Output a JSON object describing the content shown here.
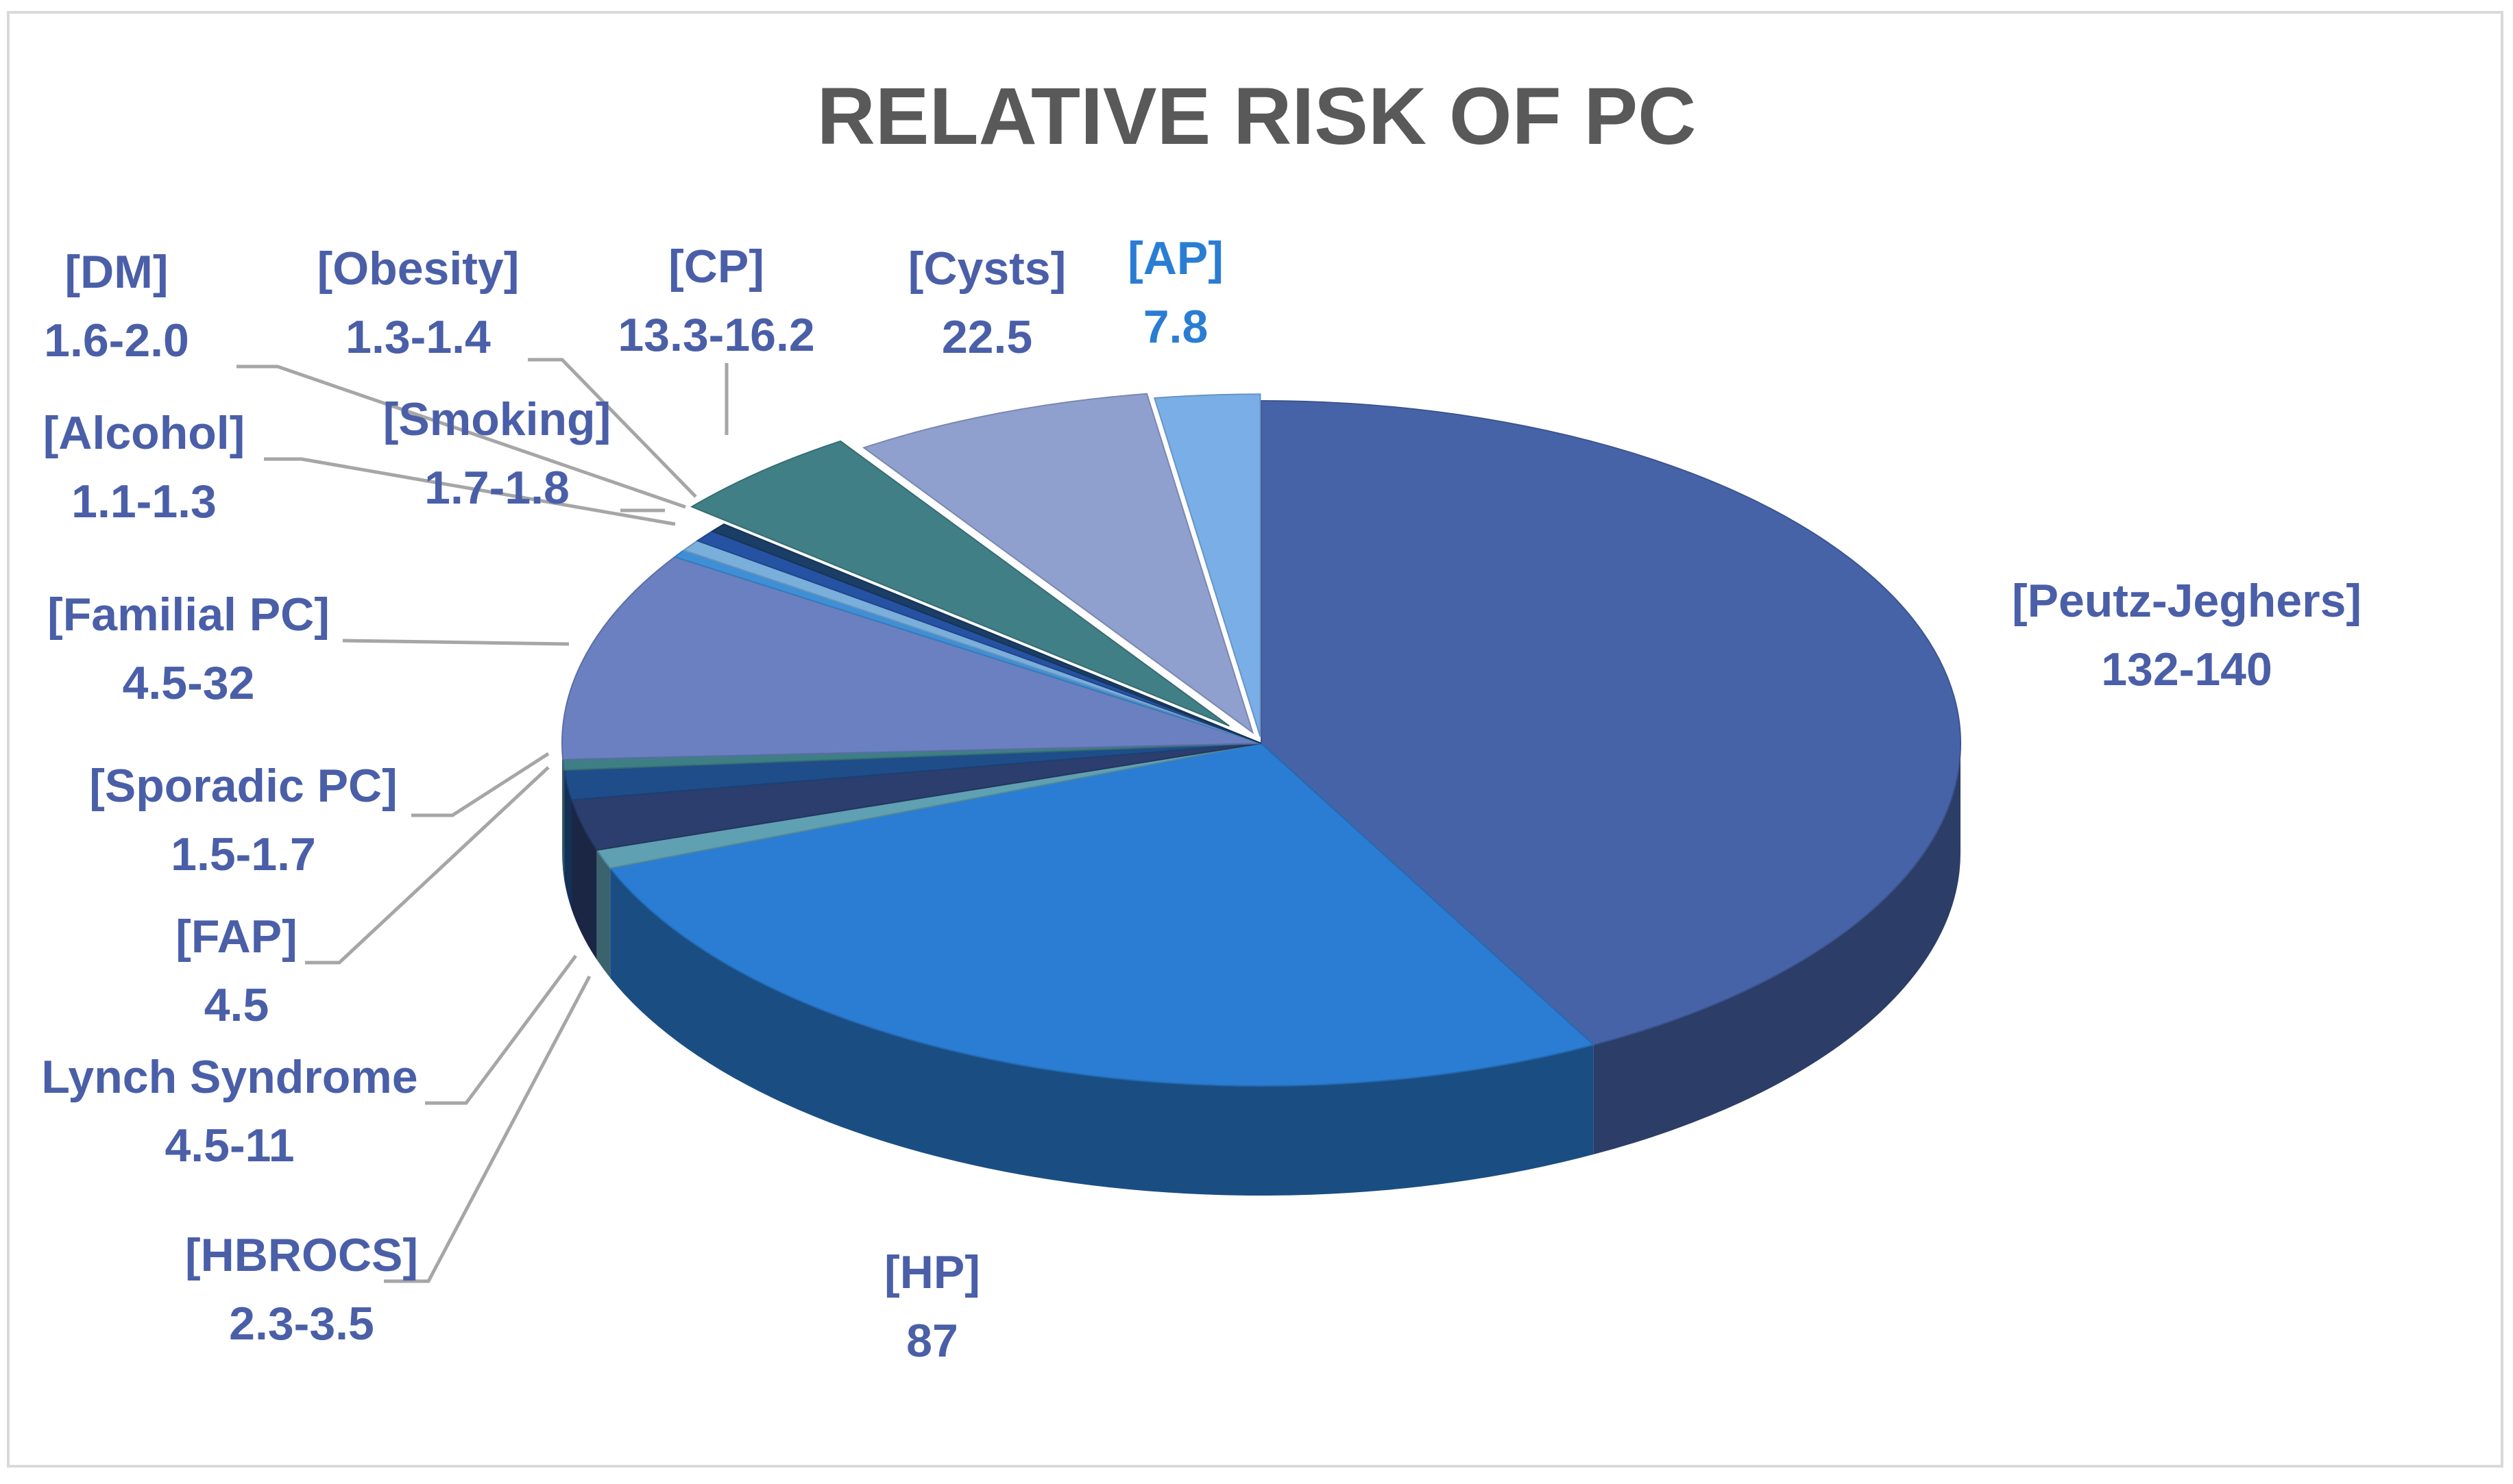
{
  "chart_data": {
    "type": "pie",
    "style": "3d-exploded",
    "title": "RELATIVE RISK OF PC",
    "legend": "none",
    "slices": [
      {
        "name": "[Peutz-Jeghers]",
        "label": "132-140",
        "value": 136,
        "color": "#4763A8"
      },
      {
        "name": "[HP]",
        "label": "87",
        "value": 87,
        "color": "#2A7DD3"
      },
      {
        "name": "[HBROCS]",
        "label": "2.3-3.5",
        "value": 2.9,
        "color": "#5FA0B2"
      },
      {
        "name": "Lynch Syndrome",
        "label": "4.5-11",
        "value": 7.75,
        "color": "#2C3E6E"
      },
      {
        "name": "[FAP]",
        "label": "4.5",
        "value": 4.5,
        "color": "#1F4D8A"
      },
      {
        "name": "[Sporadic PC]",
        "label": "1.5-1.7",
        "value": 1.6,
        "color": "#3E7F86"
      },
      {
        "name": "[Familial PC]",
        "label": "4.5-32",
        "value": 32,
        "color": "#6B80C1"
      },
      {
        "name": "[Alcohol]",
        "label": "1.1-1.3",
        "value": 1.2,
        "color": "#3F8FD6"
      },
      {
        "name": "[Smoking]",
        "label": "1.7-1.8",
        "value": 1.75,
        "color": "#7AAEDB"
      },
      {
        "name": "[DM]",
        "label": "1.6-2.0",
        "value": 1.8,
        "color": "#2652A3"
      },
      {
        "name": "[Obesity]",
        "label": "1.3-1.4",
        "value": 1.35,
        "color": "#1A3E66"
      },
      {
        "name": "[CP]",
        "label": "13.3-16.2",
        "value": 14.75,
        "color": "#417F86"
      },
      {
        "name": "[Cysts]",
        "label": "22.5",
        "value": 22.5,
        "color": "#8FA0CF"
      },
      {
        "name": "[AP]",
        "label": "7.8",
        "value": 7.8,
        "color": "#7AAEE6",
        "label_color": "#2A7DD3"
      }
    ]
  }
}
